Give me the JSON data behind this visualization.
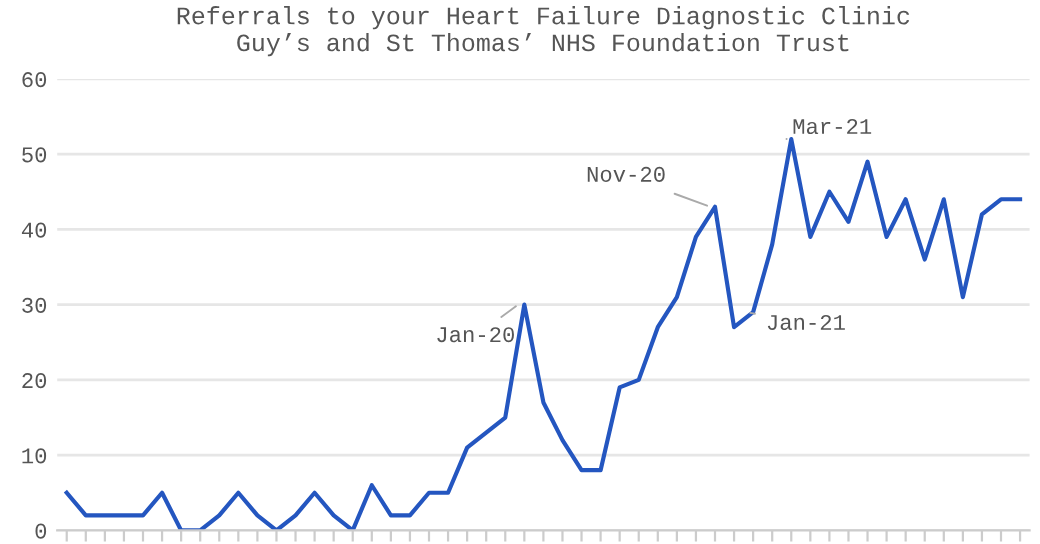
{
  "chart_data": {
    "type": "line",
    "title": "Referrals to your Heart Failure Diagnostic Clinic\nGuy’s and St Thomas’ NHS Foundation Trust",
    "categories": [
      null,
      null,
      null,
      null,
      null,
      null,
      null,
      null,
      null,
      null,
      null,
      null,
      null,
      null,
      null,
      null,
      null,
      null,
      null,
      null,
      null,
      null,
      null,
      null,
      null,
      null,
      null,
      null,
      null,
      null,
      null,
      null,
      null,
      null,
      null,
      null,
      null,
      null,
      null,
      null,
      null,
      null,
      null,
      null,
      null,
      null,
      null,
      null,
      null,
      null,
      null
    ],
    "series": [
      {
        "color": "#2456c0",
        "values": [
          5,
          2,
          2,
          2,
          2,
          5,
          0,
          0,
          2,
          5,
          2,
          0,
          2,
          5,
          2,
          0,
          6,
          2,
          2,
          5,
          5,
          11,
          13,
          15,
          30,
          17,
          12,
          8,
          8,
          19,
          20,
          27,
          31,
          39,
          43,
          27,
          29,
          38,
          52,
          39,
          45,
          41,
          49,
          39,
          44,
          36,
          44,
          31,
          42,
          44,
          44
        ]
      }
    ],
    "ylim": [
      0,
      60
    ],
    "yticks": [
      0,
      10,
      20,
      30,
      40,
      50,
      60
    ],
    "grid": "y",
    "legend": false,
    "marker": "none",
    "line_style": "solid",
    "annotations": [
      "Jan-20",
      "Nov-20",
      "Jan-21",
      "Mar-21"
    ]
  }
}
